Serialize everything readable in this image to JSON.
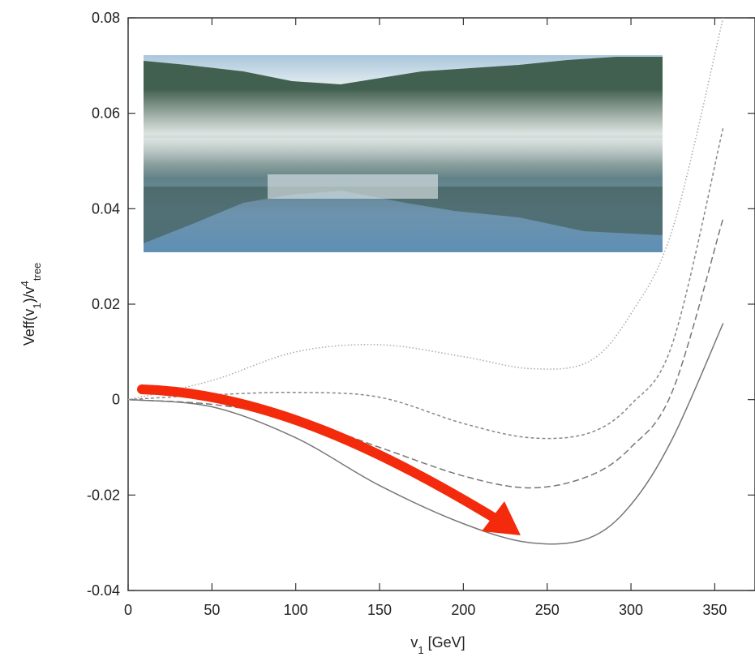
{
  "chart_data": {
    "type": "line",
    "xlabel": [
      "v",
      "1",
      " [GeV]"
    ],
    "ylabel": [
      "Veff(v",
      "1",
      ")/v",
      "4",
      "tree"
    ],
    "x": [
      0,
      50,
      100,
      150,
      200,
      240,
      275,
      300,
      325,
      355
    ],
    "series": [
      {
        "color": "#777777",
        "dash": "solid",
        "values": [
          0,
          -0.0015,
          -0.008,
          -0.018,
          -0.026,
          -0.03,
          -0.029,
          -0.022,
          -0.008,
          0.016
        ]
      },
      {
        "color": "#777777",
        "dash": "dashed",
        "values": [
          0,
          -0.001,
          -0.004,
          -0.01,
          -0.016,
          -0.0185,
          -0.016,
          -0.01,
          0.002,
          0.038
        ]
      },
      {
        "color": "#888888",
        "dash": "short-dashed",
        "values": [
          0,
          0.001,
          0.0015,
          0.0005,
          -0.005,
          -0.008,
          -0.007,
          -0.001,
          0.012,
          0.057
        ]
      },
      {
        "color": "#aaaaaa",
        "dash": "dotted",
        "values": [
          0,
          0.004,
          0.01,
          0.0115,
          0.009,
          0.0065,
          0.008,
          0.018,
          0.036,
          0.08
        ]
      }
    ],
    "xlim": [
      0,
      374
    ],
    "ylim": [
      -0.04,
      0.08
    ],
    "xticks": [
      0,
      50,
      100,
      150,
      200,
      250,
      300,
      350
    ],
    "yticks": [
      {
        "value": -0.04,
        "label": "-0.04"
      },
      {
        "value": -0.02,
        "label": "-0.02"
      },
      0,
      {
        "value": 0.02,
        "label": "0.02"
      },
      {
        "value": 0.04,
        "label": "0.04"
      },
      {
        "value": 0.06,
        "label": "0.06"
      },
      {
        "value": 0.08,
        "label": "0.08"
      }
    ]
  }
}
